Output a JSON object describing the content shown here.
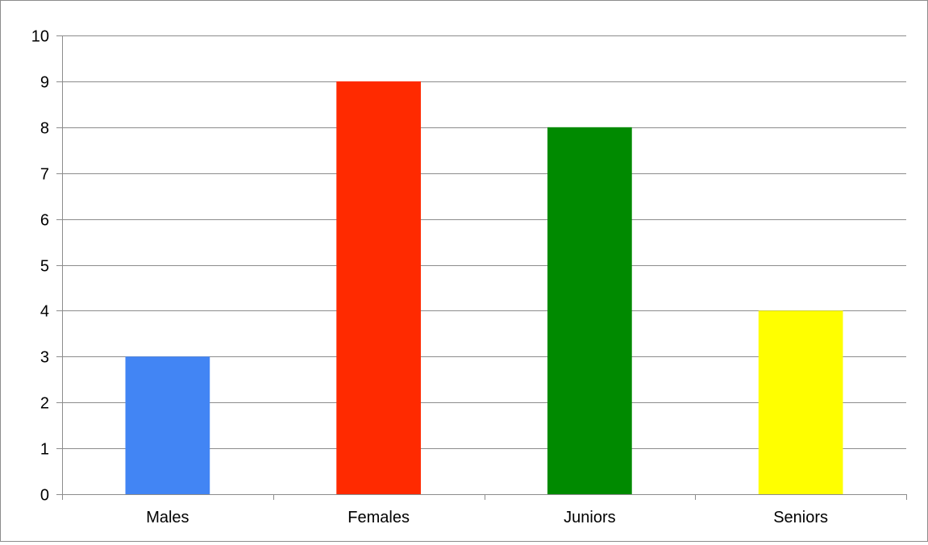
{
  "chart_data": {
    "type": "bar",
    "categories": [
      "Males",
      "Females",
      "Juniors",
      "Seniors"
    ],
    "values": [
      3,
      9,
      8,
      4
    ],
    "colors": [
      "#4285f4",
      "#ff2a00",
      "#008a00",
      "#ffff00"
    ],
    "ylim": [
      0,
      10
    ],
    "yticks": [
      0,
      1,
      2,
      3,
      4,
      5,
      6,
      7,
      8,
      9,
      10
    ],
    "grid": true,
    "gridline_color": "#8c8c8c",
    "title": "",
    "xlabel": "",
    "ylabel": "",
    "legend": "none"
  }
}
